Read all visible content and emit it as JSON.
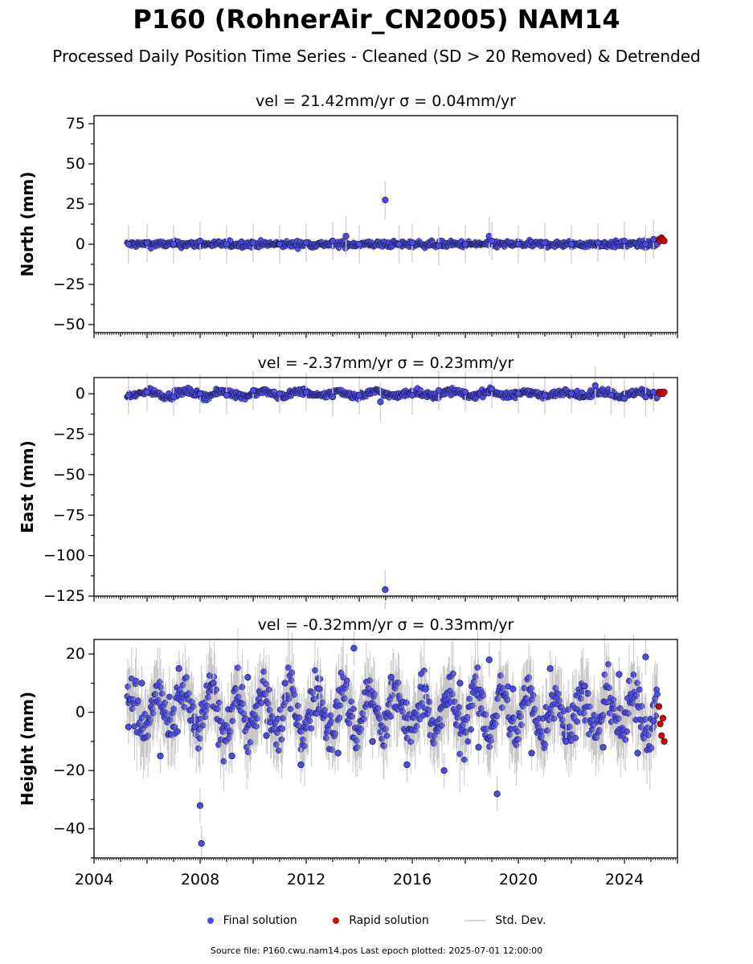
{
  "header": {
    "title": "P160 (RohnerAir_CN2005) NAM14",
    "subtitle": "Processed Daily Position Time Series - Cleaned (SD > 20 Removed) & Detrended"
  },
  "legend": {
    "final_label": "Final solution",
    "rapid_label": "Rapid solution",
    "std_label": "Std. Dev."
  },
  "footer": {
    "text": "Source file: P160.cwu.nam14.pos  Last epoch plotted: 2025-07-01 12:00:00"
  },
  "colors": {
    "final": "#4a4af0",
    "rapid": "#e00000",
    "std": "#d0d0d0",
    "std_dark": "#9a9a9a"
  },
  "chart_data": [
    {
      "type": "scatter",
      "title": "vel = 21.42mm/yr   σ = 0.04mm/yr",
      "ylabel": "North (mm)",
      "xlabel": "",
      "xlim": [
        2004.0,
        2026.0
      ],
      "ylim": [
        -55,
        80
      ],
      "yticks": [
        -50,
        -25,
        0,
        25,
        50,
        75
      ],
      "xticks": [],
      "series": [
        {
          "name": "Final solution",
          "x": [
            2005.3,
            2006.0,
            2007.0,
            2008.0,
            2009.0,
            2010.0,
            2011.0,
            2012.0,
            2013.0,
            2013.5,
            2014.0,
            2014.98,
            2015.5,
            2016.0,
            2017.0,
            2018.0,
            2018.9,
            2019.0,
            2020.0,
            2021.0,
            2022.0,
            2023.0,
            2024.0,
            2024.8,
            2025.1
          ],
          "y": [
            0,
            1,
            0,
            2,
            0,
            1,
            0,
            1,
            2,
            5,
            0,
            27.5,
            0,
            1,
            -1,
            0,
            5,
            2,
            0,
            1,
            0,
            1,
            2,
            0,
            3
          ]
        },
        {
          "name": "Rapid solution",
          "x": [
            2025.3,
            2025.35,
            2025.4,
            2025.45,
            2025.5
          ],
          "y": [
            3,
            2,
            4,
            3,
            2
          ]
        }
      ]
    },
    {
      "type": "scatter",
      "title": "vel = -2.37mm/yr   σ = 0.23mm/yr",
      "ylabel": "East (mm)",
      "xlabel": "",
      "xlim": [
        2004.0,
        2026.0
      ],
      "ylim": [
        -125,
        10
      ],
      "yticks": [
        -125,
        -100,
        -75,
        -50,
        -25,
        0
      ],
      "xticks": [],
      "series": [
        {
          "name": "Final solution",
          "x": [
            2005.3,
            2006.0,
            2007.0,
            2008.0,
            2009.0,
            2010.0,
            2011.0,
            2012.0,
            2013.0,
            2014.0,
            2014.8,
            2014.98,
            2016.0,
            2017.0,
            2018.0,
            2019.0,
            2020.0,
            2021.0,
            2022.0,
            2022.9,
            2023.5,
            2024.0,
            2024.8,
            2025.1
          ],
          "y": [
            -1,
            1,
            -2,
            0,
            -1,
            2,
            0,
            1,
            -2,
            -1,
            -5,
            -121,
            -1,
            2,
            1,
            3,
            0,
            -1,
            0,
            5,
            -1,
            -3,
            -2,
            1
          ]
        },
        {
          "name": "Rapid solution",
          "x": [
            2025.3,
            2025.35,
            2025.4,
            2025.45,
            2025.5
          ],
          "y": [
            1,
            0,
            1,
            0,
            1
          ]
        }
      ]
    },
    {
      "type": "scatter",
      "title": "vel = -0.32mm/yr   σ = 0.33mm/yr",
      "ylabel": "Height (mm)",
      "xlabel": "",
      "xlim": [
        2004.0,
        2026.0
      ],
      "ylim": [
        -50,
        25
      ],
      "yticks": [
        -40,
        -20,
        0,
        20
      ],
      "xticks": [
        2004,
        2008,
        2012,
        2016,
        2020,
        2024
      ],
      "series": [
        {
          "name": "Final solution",
          "x": [
            2005.3,
            2005.8,
            2006.5,
            2007.2,
            2007.8,
            2008.0,
            2008.05,
            2008.5,
            2009.2,
            2009.8,
            2010.5,
            2011.2,
            2011.8,
            2012.5,
            2013.2,
            2013.8,
            2014.5,
            2015.2,
            2015.8,
            2016.5,
            2017.2,
            2017.8,
            2018.5,
            2018.9,
            2019.2,
            2019.8,
            2020.5,
            2021.2,
            2021.8,
            2022.5,
            2023.2,
            2023.8,
            2024.5,
            2024.8,
            2025.1
          ],
          "y": [
            -5,
            10,
            -15,
            15,
            -5,
            -32,
            -45,
            10,
            -15,
            12,
            -8,
            10,
            -18,
            8,
            -14,
            22,
            -10,
            12,
            -18,
            8,
            -20,
            10,
            -12,
            18,
            -28,
            8,
            -14,
            15,
            -10,
            9,
            -12,
            13,
            -14,
            19,
            -3
          ]
        },
        {
          "name": "Rapid solution",
          "x": [
            2025.3,
            2025.35,
            2025.4,
            2025.45,
            2025.5
          ],
          "y": [
            2,
            -4,
            -8,
            -2,
            -10
          ]
        }
      ]
    }
  ]
}
